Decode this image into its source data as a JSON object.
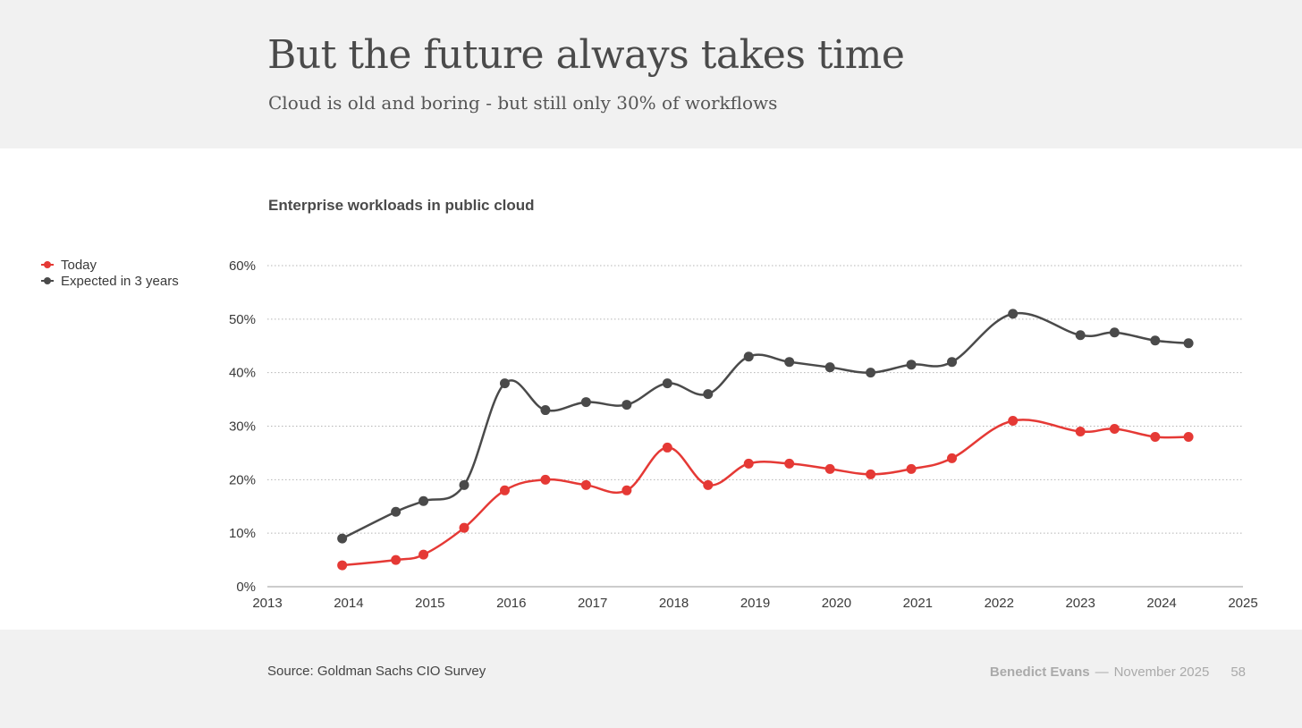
{
  "header": {
    "title": "But the future always takes time",
    "subtitle": "Cloud is old and boring - but still only 30% of workflows"
  },
  "footer": {
    "source": "Source: Goldman Sachs CIO Survey",
    "author": "Benedict Evans",
    "separator": "—",
    "date": "November 2025",
    "page": "58"
  },
  "chart_data": {
    "type": "line",
    "title": "Enterprise workloads in public cloud",
    "xlabel": "",
    "ylabel": "",
    "xlim": [
      2013,
      2025
    ],
    "ylim": [
      0,
      60
    ],
    "x_ticks": [
      "2013",
      "2014",
      "2015",
      "2016",
      "2017",
      "2018",
      "2019",
      "2020",
      "2021",
      "2022",
      "2023",
      "2024",
      "2025"
    ],
    "y_ticks": [
      "0%",
      "10%",
      "20%",
      "30%",
      "40%",
      "50%",
      "60%"
    ],
    "grid": true,
    "legend_position": "left",
    "series": [
      {
        "name": "Today",
        "color": "#e53935",
        "x": [
          2013.92,
          2014.58,
          2014.92,
          2015.42,
          2015.92,
          2016.42,
          2016.92,
          2017.42,
          2017.92,
          2018.42,
          2018.92,
          2019.42,
          2019.92,
          2020.42,
          2020.92,
          2021.42,
          2022.17,
          2023.0,
          2023.42,
          2023.92,
          2024.33
        ],
        "values": [
          4,
          5,
          6,
          11,
          18,
          20,
          19,
          18,
          26,
          19,
          23,
          23,
          22,
          21,
          22,
          24,
          31,
          29,
          29.5,
          28,
          28
        ]
      },
      {
        "name": "Expected in 3 years",
        "color": "#4a4a4a",
        "x": [
          2013.92,
          2014.58,
          2014.92,
          2015.42,
          2015.92,
          2016.42,
          2016.92,
          2017.42,
          2017.92,
          2018.42,
          2018.92,
          2019.42,
          2019.92,
          2020.42,
          2020.92,
          2021.42,
          2022.17,
          2023.0,
          2023.42,
          2023.92,
          2024.33
        ],
        "values": [
          9,
          14,
          16,
          19,
          38,
          33,
          34.5,
          34,
          38,
          36,
          43,
          42,
          41,
          40,
          41.5,
          42,
          51,
          47,
          47.5,
          46,
          45.5
        ]
      }
    ]
  }
}
